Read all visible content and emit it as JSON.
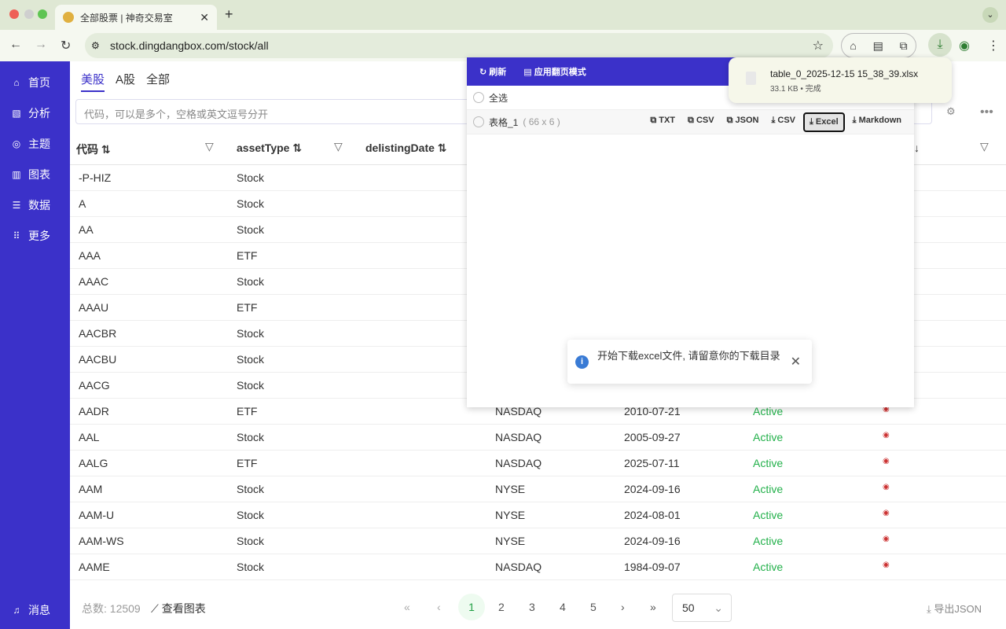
{
  "browser": {
    "tab_title": "全部股票 | 神奇交易室",
    "url": "stock.dingdangbox.com/stock/all"
  },
  "sidebar": {
    "items": [
      {
        "label": "首页",
        "icon": "home-icon"
      },
      {
        "label": "分析",
        "icon": "analysis-icon"
      },
      {
        "label": "主题",
        "icon": "theme-icon"
      },
      {
        "label": "图表",
        "icon": "chart-icon"
      },
      {
        "label": "数据",
        "icon": "database-icon"
      },
      {
        "label": "更多",
        "icon": "grid-icon"
      }
    ],
    "messages": "消息"
  },
  "market_tabs": [
    "美股",
    "A股",
    "全部"
  ],
  "search": {
    "placeholder": "代码，可以是多个，空格或英文逗号分开"
  },
  "columns": [
    "代码",
    "assetType",
    "delistingDate"
  ],
  "rows": [
    {
      "code": "-P-HIZ",
      "type": "Stock"
    },
    {
      "code": "A",
      "type": "Stock"
    },
    {
      "code": "AA",
      "type": "Stock"
    },
    {
      "code": "AAA",
      "type": "ETF"
    },
    {
      "code": "AAAC",
      "type": "Stock"
    },
    {
      "code": "AAAU",
      "type": "ETF"
    },
    {
      "code": "AACBR",
      "type": "Stock"
    },
    {
      "code": "AACBU",
      "type": "Stock"
    },
    {
      "code": "AACG",
      "type": "Stock"
    },
    {
      "code": "AADR",
      "type": "ETF",
      "exchange": "NASDAQ",
      "date": "2010-07-21",
      "status": "Active"
    },
    {
      "code": "AAL",
      "type": "Stock",
      "exchange": "NASDAQ",
      "date": "2005-09-27",
      "status": "Active"
    },
    {
      "code": "AALG",
      "type": "ETF",
      "exchange": "NASDAQ",
      "date": "2025-07-11",
      "status": "Active"
    },
    {
      "code": "AAM",
      "type": "Stock",
      "exchange": "NYSE",
      "date": "2024-09-16",
      "status": "Active"
    },
    {
      "code": "AAM-U",
      "type": "Stock",
      "exchange": "NYSE",
      "date": "2024-08-01",
      "status": "Active"
    },
    {
      "code": "AAM-WS",
      "type": "Stock",
      "exchange": "NYSE",
      "date": "2024-09-16",
      "status": "Active"
    },
    {
      "code": "AAME",
      "type": "Stock",
      "exchange": "NASDAQ",
      "date": "1984-09-07",
      "status": "Active"
    }
  ],
  "footer": {
    "total": "总数: 12509",
    "chart_link": "查看图表",
    "pages": [
      "1",
      "2",
      "3",
      "4",
      "5"
    ],
    "current_page": "1",
    "page_size": "50",
    "export": "导出JSON"
  },
  "panel": {
    "refresh": "刷新",
    "paging_mode": "应用翻页模式",
    "select_all": "全选",
    "table_name": "表格_1",
    "table_dims": "( 66 x 6 )",
    "buttons": [
      "TXT",
      "CSV",
      "JSON",
      "CSV",
      "Excel",
      "Markdown"
    ],
    "selected_button": "Excel"
  },
  "toast": {
    "message": "开始下载excel文件, 请留意你的下载目录"
  },
  "download": {
    "filename": "table_0_2025-12-15 15_38_39.xlsx",
    "status": "33.1 KB • 完成"
  },
  "colors": {
    "accent": "#3b31c9",
    "active": "#22b04a"
  }
}
